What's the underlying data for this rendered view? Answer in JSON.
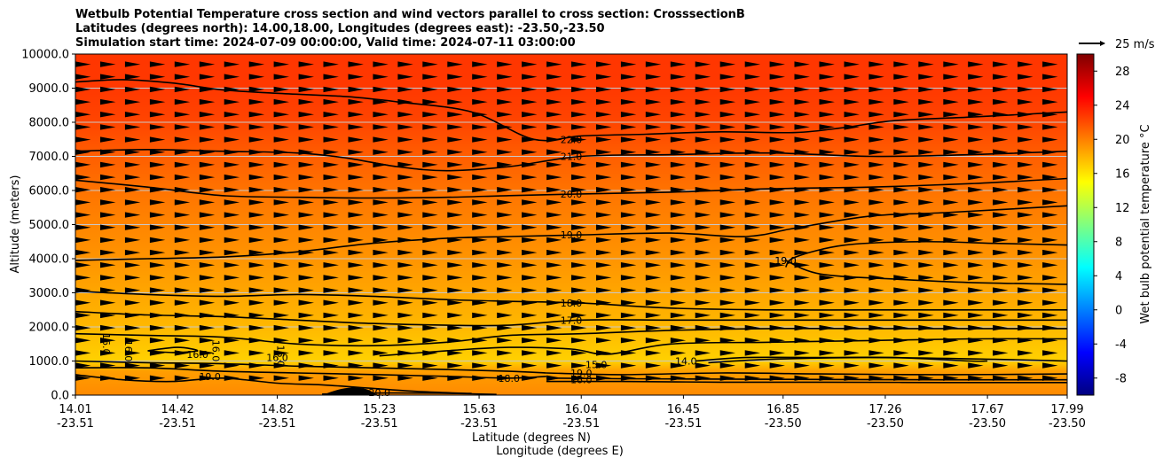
{
  "chart_data": {
    "type": "heatmap",
    "title_lines": [
      "Wetbulb Potential Temperature cross section and wind vectors parallel to cross section: CrosssectionB",
      "Latitudes (degrees north): 14.00,18.00, Longitudes (degrees east): -23.50,-23.50",
      "Simulation start time: 2024-07-09 00:00:00, Valid time: 2024-07-11 03:00:00"
    ],
    "xlabel": "Latitude (degrees N)",
    "xlabel2": "Longitude (degrees E)",
    "ylabel": "Altitude (meters)",
    "xlim": [
      14.01,
      17.99
    ],
    "ylim": [
      0,
      10000
    ],
    "x_ticks": [
      {
        "lat": "14.01",
        "lon": "-23.51",
        "v": 14.01
      },
      {
        "lat": "14.42",
        "lon": "-23.51",
        "v": 14.42
      },
      {
        "lat": "14.82",
        "lon": "-23.51",
        "v": 14.82
      },
      {
        "lat": "15.23",
        "lon": "-23.51",
        "v": 15.23
      },
      {
        "lat": "15.63",
        "lon": "-23.51",
        "v": 15.63
      },
      {
        "lat": "16.04",
        "lon": "-23.51",
        "v": 16.04
      },
      {
        "lat": "16.45",
        "lon": "-23.51",
        "v": 16.45
      },
      {
        "lat": "16.85",
        "lon": "-23.50",
        "v": 16.85
      },
      {
        "lat": "17.26",
        "lon": "-23.50",
        "v": 17.26
      },
      {
        "lat": "17.67",
        "lon": "-23.50",
        "v": 17.67
      },
      {
        "lat": "17.99",
        "lon": "-23.50",
        "v": 17.99
      }
    ],
    "y_ticks": [
      "0.0",
      "1000.0",
      "2000.0",
      "3000.0",
      "4000.0",
      "5000.0",
      "6000.0",
      "7000.0",
      "8000.0",
      "9000.0",
      "10000.0"
    ],
    "colorbar": {
      "label": "Wet bulb potential temperature $^\\circ$C",
      "label_display": "Wet bulb potential temperature °C",
      "range": [
        -10,
        30
      ],
      "ticks": [
        "-8",
        "-4",
        "0",
        "4",
        "8",
        "12",
        "16",
        "20",
        "24",
        "28"
      ]
    },
    "wind_key": {
      "label": "25 m/s",
      "value": 25
    },
    "fill_profile": [
      {
        "alt": 0,
        "t": 19.6
      },
      {
        "alt": 700,
        "t": 18.8
      },
      {
        "alt": 1000,
        "t": 16.8
      },
      {
        "alt": 2000,
        "t": 17.8
      },
      {
        "alt": 3000,
        "t": 18.5
      },
      {
        "alt": 4000,
        "t": 19.2
      },
      {
        "alt": 5000,
        "t": 19.8
      },
      {
        "alt": 6000,
        "t": 20.5
      },
      {
        "alt": 7000,
        "t": 21.3
      },
      {
        "alt": 8000,
        "t": 22.3
      },
      {
        "alt": 9000,
        "t": 22.8
      },
      {
        "alt": 10000,
        "t": 22.9
      }
    ],
    "contours": [
      {
        "level": "22.0",
        "label_lat": 16.0,
        "label_alt": 7500,
        "points": [
          [
            14.01,
            9180
          ],
          [
            14.2,
            9250
          ],
          [
            14.4,
            9150
          ],
          [
            14.6,
            8950
          ],
          [
            14.82,
            8850
          ],
          [
            15.1,
            8750
          ],
          [
            15.3,
            8600
          ],
          [
            15.6,
            8300
          ],
          [
            15.85,
            7500
          ],
          [
            16.04,
            7600
          ],
          [
            16.3,
            7650
          ],
          [
            16.6,
            7720
          ],
          [
            16.9,
            7700
          ],
          [
            17.1,
            7850
          ],
          [
            17.3,
            8050
          ],
          [
            17.6,
            8150
          ],
          [
            17.99,
            8300
          ]
        ]
      },
      {
        "level": "21.0",
        "label_lat": 16.0,
        "label_alt": 7000,
        "points": [
          [
            14.01,
            7150
          ],
          [
            14.3,
            7200
          ],
          [
            14.6,
            7150
          ],
          [
            14.9,
            7100
          ],
          [
            15.1,
            6950
          ],
          [
            15.3,
            6700
          ],
          [
            15.5,
            6580
          ],
          [
            15.75,
            6700
          ],
          [
            16.04,
            7000
          ],
          [
            16.4,
            7050
          ],
          [
            16.8,
            7100
          ],
          [
            17.2,
            7000
          ],
          [
            17.6,
            7050
          ],
          [
            17.99,
            7150
          ]
        ]
      },
      {
        "level": "20.0",
        "label_lat": 16.0,
        "label_alt": 5900,
        "points": [
          [
            14.01,
            6300
          ],
          [
            14.3,
            6100
          ],
          [
            14.6,
            5850
          ],
          [
            14.9,
            5800
          ],
          [
            15.2,
            5780
          ],
          [
            15.5,
            5800
          ],
          [
            15.75,
            5850
          ],
          [
            16.04,
            5900
          ],
          [
            16.4,
            5950
          ],
          [
            16.8,
            6050
          ],
          [
            17.2,
            6100
          ],
          [
            17.6,
            6200
          ],
          [
            17.99,
            6350
          ]
        ]
      },
      {
        "level": "19.0",
        "label_lat": 16.0,
        "label_alt": 4700,
        "points": [
          [
            14.01,
            3950
          ],
          [
            14.3,
            4000
          ],
          [
            14.6,
            4050
          ],
          [
            14.9,
            4200
          ],
          [
            15.2,
            4450
          ],
          [
            15.5,
            4600
          ],
          [
            15.75,
            4650
          ],
          [
            16.04,
            4700
          ],
          [
            16.4,
            4750
          ],
          [
            16.7,
            4650
          ],
          [
            16.9,
            4900
          ],
          [
            17.2,
            5250
          ],
          [
            17.5,
            5350
          ],
          [
            17.99,
            5550
          ]
        ]
      },
      {
        "level": "19.0",
        "label_lat": 16.86,
        "label_alt": 3950,
        "points": [
          [
            16.86,
            3750
          ],
          [
            16.9,
            4050
          ],
          [
            17.1,
            4400
          ],
          [
            17.4,
            4500
          ],
          [
            17.7,
            4450
          ],
          [
            17.99,
            4400
          ]
        ]
      },
      {
        "level": "19.0",
        "label_lat": 16.86,
        "label_alt": 3950,
        "points": [
          [
            16.86,
            3950
          ],
          [
            17.0,
            3550
          ],
          [
            17.3,
            3400
          ],
          [
            17.6,
            3300
          ],
          [
            17.99,
            3250
          ]
        ]
      },
      {
        "level": "18.0",
        "label_lat": 16.0,
        "label_alt": 2700,
        "points": [
          [
            14.01,
            3050
          ],
          [
            14.3,
            2950
          ],
          [
            14.6,
            2900
          ],
          [
            14.9,
            2950
          ],
          [
            15.2,
            2900
          ],
          [
            15.5,
            2800
          ],
          [
            15.75,
            2750
          ],
          [
            16.04,
            2700
          ],
          [
            16.4,
            2550
          ],
          [
            16.8,
            2500
          ],
          [
            17.2,
            2500
          ],
          [
            17.6,
            2500
          ],
          [
            17.99,
            2500
          ]
        ]
      },
      {
        "level": "17.0",
        "label_lat": 16.0,
        "label_alt": 2200,
        "points": [
          [
            14.01,
            2450
          ],
          [
            14.3,
            2350
          ],
          [
            14.6,
            2300
          ],
          [
            14.9,
            2200
          ],
          [
            15.2,
            2100
          ],
          [
            15.5,
            2050
          ],
          [
            15.75,
            2050
          ],
          [
            16.04,
            2200
          ],
          [
            16.4,
            2200
          ],
          [
            16.8,
            2200
          ],
          [
            17.2,
            2200
          ],
          [
            17.6,
            2200
          ],
          [
            17.99,
            2200
          ]
        ]
      },
      {
        "level": "",
        "label_lat": 0,
        "label_alt": 0,
        "points": [
          [
            14.01,
            1800
          ],
          [
            14.3,
            1750
          ],
          [
            14.6,
            1700
          ],
          [
            14.9,
            1500
          ],
          [
            15.2,
            1450
          ],
          [
            15.5,
            1550
          ],
          [
            15.75,
            1750
          ],
          [
            16.04,
            1800
          ],
          [
            16.4,
            1900
          ],
          [
            16.8,
            1950
          ],
          [
            17.2,
            1950
          ],
          [
            17.6,
            1950
          ],
          [
            17.99,
            1950
          ]
        ]
      },
      {
        "level": "15.0",
        "label_lat": 16.1,
        "label_alt": 900,
        "points": [
          [
            15.23,
            1150
          ],
          [
            15.5,
            1300
          ],
          [
            15.75,
            1400
          ],
          [
            16.0,
            1350
          ],
          [
            16.15,
            1200
          ],
          [
            16.4,
            1500
          ],
          [
            16.8,
            1550
          ],
          [
            17.2,
            1600
          ],
          [
            17.6,
            1650
          ],
          [
            17.99,
            1650
          ]
        ]
      },
      {
        "level": "14.0",
        "label_lat": 16.46,
        "label_alt": 1000,
        "points": [
          [
            16.5,
            1000
          ],
          [
            16.7,
            1100
          ],
          [
            17.0,
            1100
          ],
          [
            17.3,
            1100
          ],
          [
            17.6,
            1000
          ],
          [
            17.67,
            1000
          ]
        ]
      },
      {
        "level": "",
        "label_lat": 0,
        "label_alt": 0,
        "points": [
          [
            16.55,
            950
          ],
          [
            16.8,
            1050
          ],
          [
            17.2,
            1100
          ],
          [
            17.7,
            1050
          ],
          [
            17.99,
            1000
          ]
        ]
      },
      {
        "level": "16.0",
        "label_lat": 14.82,
        "label_alt": 1100,
        "points": [
          [
            14.01,
            1000
          ],
          [
            14.3,
            950
          ],
          [
            14.6,
            920
          ],
          [
            14.9,
            850
          ],
          [
            15.2,
            800
          ],
          [
            15.5,
            750
          ],
          [
            15.75,
            700
          ],
          [
            15.9,
            650
          ]
        ]
      },
      {
        "level": "16.0",
        "label_lat": 14.5,
        "label_alt": 1200,
        "points": [
          [
            14.3,
            1300
          ],
          [
            14.42,
            1400
          ],
          [
            14.5,
            1300
          ],
          [
            14.4,
            1250
          ],
          [
            14.3,
            1300
          ]
        ]
      },
      {
        "level": "18.0",
        "label_lat": 15.75,
        "label_alt": 500,
        "points": [
          [
            14.01,
            800
          ],
          [
            14.3,
            800
          ],
          [
            14.6,
            700
          ],
          [
            14.9,
            650
          ],
          [
            15.23,
            600
          ],
          [
            15.5,
            550
          ],
          [
            15.75,
            500
          ],
          [
            15.9,
            550
          ]
        ]
      },
      {
        "level": "19.0",
        "label_lat": 14.55,
        "label_alt": 550,
        "points": [
          [
            14.01,
            600
          ],
          [
            14.2,
            450
          ],
          [
            14.4,
            400
          ],
          [
            14.6,
            500
          ],
          [
            14.82,
            350
          ],
          [
            15.0,
            300
          ],
          [
            15.2,
            200
          ],
          [
            15.4,
            100
          ],
          [
            15.6,
            50
          ]
        ]
      },
      {
        "level": "19.0",
        "label_lat": 16.04,
        "label_alt": 650,
        "points": [
          [
            15.9,
            650
          ],
          [
            16.2,
            600
          ],
          [
            16.6,
            650
          ],
          [
            17.0,
            620
          ],
          [
            17.5,
            600
          ],
          [
            17.99,
            620
          ]
        ]
      },
      {
        "level": "16.0",
        "label_lat": 16.04,
        "label_alt": 450,
        "points": [
          [
            15.9,
            500
          ],
          [
            16.2,
            480
          ],
          [
            16.6,
            470
          ],
          [
            17.0,
            460
          ],
          [
            17.5,
            450
          ],
          [
            17.99,
            450
          ]
        ]
      },
      {
        "level": "",
        "label_lat": 0,
        "label_alt": 0,
        "points": [
          [
            15.9,
            400
          ],
          [
            16.2,
            400
          ],
          [
            16.6,
            380
          ],
          [
            17.0,
            380
          ],
          [
            17.5,
            370
          ],
          [
            17.99,
            370
          ]
        ]
      },
      {
        "level": "20.0",
        "label_lat": 15.23,
        "label_alt": 80,
        "points": [
          [
            15.0,
            30
          ],
          [
            15.2,
            60
          ],
          [
            15.4,
            60
          ],
          [
            15.6,
            40
          ],
          [
            15.7,
            20
          ]
        ]
      }
    ],
    "rotated_labels": [
      {
        "text": "16.0",
        "lat": 14.12,
        "alt": 1500
      },
      {
        "text": "16.0",
        "lat": 14.21,
        "alt": 1300
      },
      {
        "text": "16.0",
        "lat": 14.56,
        "alt": 1300
      },
      {
        "text": "16.0",
        "lat": 14.82,
        "alt": 1150
      }
    ],
    "terrain": [
      [
        15.0,
        0
      ],
      [
        15.06,
        150
      ],
      [
        15.12,
        220
      ],
      [
        15.18,
        170
      ],
      [
        15.22,
        0
      ]
    ],
    "wind_u_mps": 5
  }
}
